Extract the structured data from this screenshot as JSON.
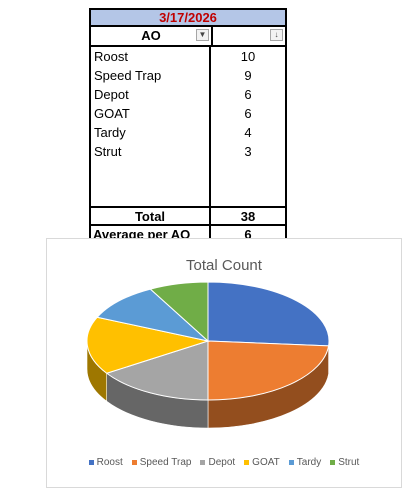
{
  "table": {
    "date": "3/17/2026",
    "header": {
      "ao": "AO",
      "count": ""
    },
    "rows": [
      {
        "name": "Roost",
        "value": "10"
      },
      {
        "name": "Speed Trap",
        "value": "9"
      },
      {
        "name": "Depot",
        "value": "6"
      },
      {
        "name": "GOAT",
        "value": "6"
      },
      {
        "name": "Tardy",
        "value": "4"
      },
      {
        "name": "Strut",
        "value": "3"
      }
    ],
    "total_label": "Total",
    "total_value": "38",
    "avg_label": "Average per AO",
    "avg_value": "6"
  },
  "chart_data": {
    "type": "pie",
    "title": "Total Count",
    "categories": [
      "Roost",
      "Speed Trap",
      "Depot",
      "GOAT",
      "Tardy",
      "Strut"
    ],
    "values": [
      10,
      9,
      6,
      6,
      4,
      3
    ],
    "colors": [
      "#4472c4",
      "#ed7d31",
      "#a5a5a5",
      "#ffc000",
      "#5b9bd5",
      "#70ad47"
    ],
    "legend_position": "bottom",
    "style": "3d"
  }
}
